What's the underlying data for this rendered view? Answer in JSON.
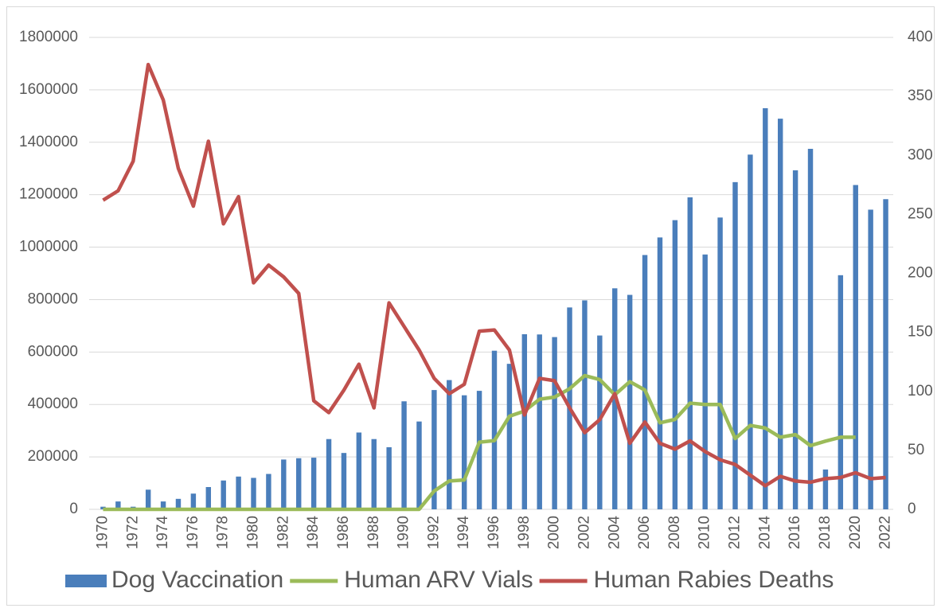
{
  "chart_data": {
    "type": "bar",
    "categories": [
      "1970",
      null,
      "1972",
      null,
      "1974",
      null,
      "1976",
      null,
      "1978",
      null,
      "1980",
      null,
      "1982",
      null,
      "1984",
      null,
      "1986",
      null,
      "1988",
      null,
      "1990",
      null,
      "1992",
      null,
      "1994",
      null,
      "1996",
      null,
      "1998",
      null,
      "2000",
      null,
      "2002",
      null,
      "2004",
      null,
      "2006",
      null,
      "2008",
      null,
      "2010",
      null,
      "2012",
      null,
      "2014",
      null,
      "2016",
      null,
      "2018",
      null,
      "2020",
      null,
      "2022"
    ],
    "series": [
      {
        "name": "Dog Vaccination",
        "type": "bar",
        "color": "#4a7ebb",
        "values": [
          10000,
          30000,
          10000,
          75000,
          30000,
          40000,
          60000,
          85000,
          110000,
          125000,
          120000,
          135000,
          190000,
          195000,
          197000,
          268000,
          215000,
          293000,
          268000,
          237000,
          412000,
          335000,
          455000,
          493000,
          435000,
          452000,
          605000,
          555000,
          668000,
          667000,
          657000,
          770000,
          797000,
          663000,
          843000,
          818000,
          970000,
          1037000,
          1103000,
          1190000,
          972000,
          1113000,
          1248000,
          1353000,
          1530000,
          1490000,
          1293000,
          1375000,
          152000,
          893000,
          1237000,
          1143000,
          1183000
        ]
      },
      {
        "name": "Human ARV Vials",
        "type": "line",
        "color": "#9bbb59",
        "values": [
          0,
          0,
          0,
          0,
          0,
          0,
          0,
          0,
          0,
          0,
          0,
          0,
          0,
          0,
          0,
          0,
          0,
          0,
          0,
          0,
          0,
          0,
          70000,
          108000,
          112000,
          256000,
          262000,
          355000,
          375000,
          420000,
          428000,
          460000,
          510000,
          495000,
          437000,
          487000,
          455000,
          330000,
          343000,
          405000,
          400000,
          400000,
          270000,
          320000,
          310000,
          275000,
          285000,
          243000,
          260000,
          275000,
          275000,
          null,
          null
        ]
      },
      {
        "name": "Human Rabies Deaths",
        "type": "line",
        "axis": "y2",
        "color": "#c0504d",
        "values": [
          262,
          270,
          295,
          377,
          347,
          289,
          257,
          312,
          242,
          265,
          192,
          207,
          197,
          183,
          92,
          82,
          101,
          123,
          86,
          175,
          155,
          135,
          111,
          98,
          106,
          151,
          152,
          135,
          80,
          111,
          109,
          86,
          65,
          76,
          98,
          56,
          74,
          56,
          51,
          58,
          49,
          42,
          38,
          29,
          20,
          28,
          24,
          23,
          26,
          27,
          31,
          26,
          27
        ]
      }
    ],
    "ylim": [
      0,
      1800000
    ],
    "yticks": [
      0,
      200000,
      400000,
      600000,
      800000,
      1000000,
      1200000,
      1400000,
      1600000,
      1800000
    ],
    "y2lim": [
      0,
      400
    ],
    "y2ticks": [
      0,
      50,
      100,
      150,
      200,
      250,
      300,
      350,
      400
    ],
    "grid": true,
    "legend": "bottom"
  }
}
